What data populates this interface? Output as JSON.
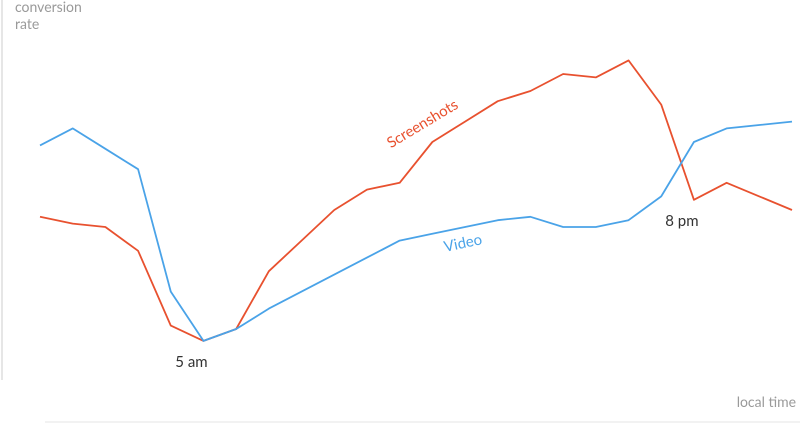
{
  "chart_data": {
    "type": "line",
    "y_label": "conversion rate",
    "x_label": "local time",
    "categories": [
      null,
      null,
      null,
      null,
      null,
      "5 am",
      null,
      null,
      null,
      null,
      null,
      null,
      null,
      null,
      null,
      null,
      null,
      null,
      null,
      null,
      "8 pm",
      null,
      null,
      null
    ],
    "ylim": [
      0,
      100
    ],
    "series": [
      {
        "name": "Screenshots",
        "color": "#e8512f",
        "values": [
          48,
          46,
          45,
          38,
          16,
          11.5,
          15,
          32,
          41,
          50,
          56,
          58,
          70,
          76,
          82,
          85,
          90,
          89,
          94,
          81,
          53,
          58,
          54,
          50
        ]
      },
      {
        "name": "Video",
        "color": "#4aa3e8",
        "values": [
          69,
          74,
          68,
          62,
          26,
          11.5,
          15,
          21,
          26,
          31,
          36,
          41,
          43,
          45,
          47,
          48,
          45,
          45,
          47,
          54,
          70,
          74,
          75,
          76
        ]
      }
    ]
  }
}
